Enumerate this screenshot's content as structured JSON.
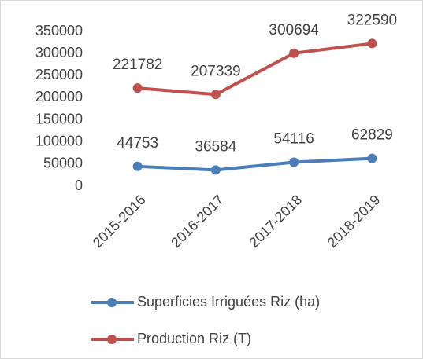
{
  "chart_data": {
    "type": "line",
    "categories": [
      "2015-2016",
      "2016-2017",
      "2017-2018",
      "2018-2019"
    ],
    "series": [
      {
        "name": "Superficies Irriguées Riz (ha)",
        "color": "#4a7ebb",
        "values": [
          44753,
          36584,
          54116,
          62829
        ]
      },
      {
        "name": "Production Riz (T)",
        "color": "#c0504d",
        "values": [
          221782,
          207339,
          300694,
          322590
        ]
      }
    ],
    "ylim": [
      0,
      350000
    ],
    "yticks": [
      0,
      50000,
      100000,
      150000,
      200000,
      250000,
      300000,
      350000
    ],
    "grid": false,
    "legend": "bottom"
  }
}
